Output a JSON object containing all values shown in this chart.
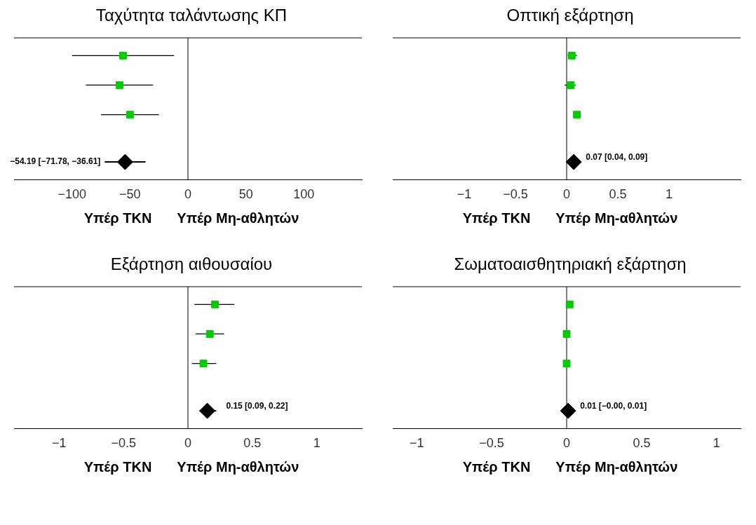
{
  "chart_data": [
    {
      "type": "scatter",
      "title": "Ταχύτητα ταλάντωσης ΚΠ",
      "orientation": "horizontal",
      "categories": [
        null,
        null,
        null,
        null
      ],
      "xlim": [
        -150,
        150
      ],
      "xticks": [
        -100,
        -50,
        0,
        50,
        100
      ],
      "tick_labels": "x",
      "grid": false,
      "legend": false,
      "series": [
        {
          "color": "#00cc00",
          "marker": "square",
          "values": [
            -56,
            -59,
            -50,
            null
          ],
          "errors": [
            [
              -100,
              -12
            ],
            [
              -88,
              -30
            ],
            [
              -75,
              -25
            ],
            null
          ]
        },
        {
          "color": "#000000",
          "marker": "diamond",
          "values": [
            null,
            null,
            null,
            -54.19
          ],
          "errors": [
            null,
            null,
            null,
            [
              -71.78,
              -36.61
            ]
          ],
          "value_labels": [
            null,
            null,
            null,
            "−54.19 [−71.78, −36.61]"
          ]
        }
      ],
      "ref_lines": [
        {
          "axis": "x",
          "value": 0,
          "color": "#000000"
        }
      ],
      "annotations": [
        "Υπέρ ΤΚΝ",
        "Υπέρ Μη-αθλητών"
      ]
    },
    {
      "type": "scatter",
      "title": "Οπτική εξάρτηση",
      "orientation": "horizontal",
      "categories": [
        null,
        null,
        null,
        null
      ],
      "xlim": [
        -1.7,
        1.7
      ],
      "xticks": [
        -1,
        -0.5,
        0,
        0.5,
        1
      ],
      "tick_labels": "x",
      "grid": false,
      "legend": false,
      "series": [
        {
          "color": "#00cc00",
          "marker": "square",
          "values": [
            0.05,
            0.04,
            0.1,
            null
          ],
          "errors": [
            [
              0.01,
              0.1
            ],
            [
              -0.02,
              0.09
            ],
            null,
            null
          ]
        },
        {
          "color": "#000000",
          "marker": "diamond",
          "values": [
            null,
            null,
            null,
            0.07
          ],
          "value_labels": [
            null,
            null,
            null,
            "0.07 [0.04, 0.09]"
          ]
        }
      ],
      "ref_lines": [
        {
          "axis": "x",
          "value": 0,
          "color": "#000000"
        }
      ],
      "annotations": [
        "Υπέρ ΤΚΝ",
        "Υπέρ Μη-αθλητών"
      ]
    },
    {
      "type": "scatter",
      "title": "Εξάρτηση αιθουσαίου",
      "orientation": "horizontal",
      "categories": [
        null,
        null,
        null,
        null
      ],
      "xlim": [
        -1.35,
        1.35
      ],
      "xticks": [
        -1,
        -0.5,
        0,
        0.5,
        1
      ],
      "tick_labels": "x",
      "grid": false,
      "legend": false,
      "series": [
        {
          "color": "#00cc00",
          "marker": "square",
          "values": [
            0.21,
            0.17,
            0.12,
            null
          ],
          "errors": [
            [
              0.05,
              0.36
            ],
            [
              0.06,
              0.28
            ],
            [
              0.03,
              0.22
            ],
            null
          ]
        },
        {
          "color": "#000000",
          "marker": "diamond",
          "values": [
            null,
            null,
            null,
            0.15
          ],
          "errors": [
            null,
            null,
            null,
            [
              0.09,
              0.22
            ]
          ],
          "value_labels": [
            null,
            null,
            null,
            "0.15 [0.09, 0.22]"
          ]
        }
      ],
      "ref_lines": [
        {
          "axis": "x",
          "value": 0,
          "color": "#000000"
        }
      ],
      "annotations": [
        "Υπέρ ΤΚΝ",
        "Υπέρ Μη-αθλητών"
      ]
    },
    {
      "type": "scatter",
      "title": "Σωματοαισθητηριακή εξάρτηση",
      "orientation": "horizontal",
      "categories": [
        null,
        null,
        null,
        null
      ],
      "xlim": [
        -1.16,
        1.16
      ],
      "xticks": [
        -1,
        -0.5,
        0,
        0.5,
        1
      ],
      "tick_labels": "x",
      "grid": false,
      "legend": false,
      "series": [
        {
          "color": "#00cc00",
          "marker": "square",
          "values": [
            0.02,
            0.0,
            0.0,
            null
          ]
        },
        {
          "color": "#000000",
          "marker": "diamond",
          "values": [
            null,
            null,
            null,
            0.01
          ],
          "value_labels": [
            null,
            null,
            null,
            "0.01 [−0.00, 0.01]"
          ]
        }
      ],
      "ref_lines": [
        {
          "axis": "x",
          "value": 0,
          "color": "#000000"
        }
      ],
      "annotations": [
        "Υπέρ ΤΚΝ",
        "Υπέρ Μη-αθλητών"
      ]
    }
  ]
}
